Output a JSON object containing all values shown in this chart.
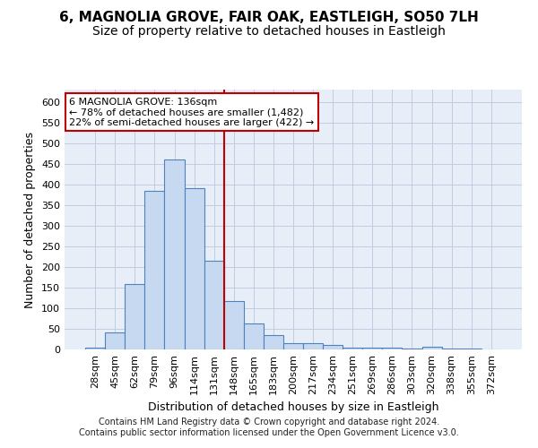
{
  "title_line1": "6, MAGNOLIA GROVE, FAIR OAK, EASTLEIGH, SO50 7LH",
  "title_line2": "Size of property relative to detached houses in Eastleigh",
  "xlabel": "Distribution of detached houses by size in Eastleigh",
  "ylabel": "Number of detached properties",
  "footer_line1": "Contains HM Land Registry data © Crown copyright and database right 2024.",
  "footer_line2": "Contains public sector information licensed under the Open Government Licence v3.0.",
  "annotation_line1": "6 MAGNOLIA GROVE: 136sqm",
  "annotation_line2": "← 78% of detached houses are smaller (1,482)",
  "annotation_line3": "22% of semi-detached houses are larger (422) →",
  "bar_labels": [
    "28sqm",
    "45sqm",
    "62sqm",
    "79sqm",
    "96sqm",
    "114sqm",
    "131sqm",
    "148sqm",
    "165sqm",
    "183sqm",
    "200sqm",
    "217sqm",
    "234sqm",
    "251sqm",
    "269sqm",
    "286sqm",
    "303sqm",
    "320sqm",
    "338sqm",
    "355sqm",
    "372sqm"
  ],
  "bar_values": [
    5,
    42,
    158,
    385,
    460,
    390,
    215,
    118,
    62,
    35,
    15,
    15,
    10,
    5,
    5,
    5,
    2,
    7,
    2,
    2,
    1
  ],
  "bar_color": "#c6d9f1",
  "bar_edge_color": "#4f81bd",
  "vline_x": 6.5,
  "vline_color": "#c00000",
  "ylim_max": 630,
  "ytick_step": 50,
  "background_color": "#ffffff",
  "plot_bg_color": "#e8eef7",
  "grid_color": "#c0cce0",
  "annotation_box_facecolor": "#ffffff",
  "annotation_box_edgecolor": "#c00000",
  "title_fontsize": 11,
  "subtitle_fontsize": 10,
  "ylabel_fontsize": 9,
  "xlabel_fontsize": 9,
  "tick_fontsize": 8,
  "annotation_fontsize": 8,
  "footer_fontsize": 7
}
